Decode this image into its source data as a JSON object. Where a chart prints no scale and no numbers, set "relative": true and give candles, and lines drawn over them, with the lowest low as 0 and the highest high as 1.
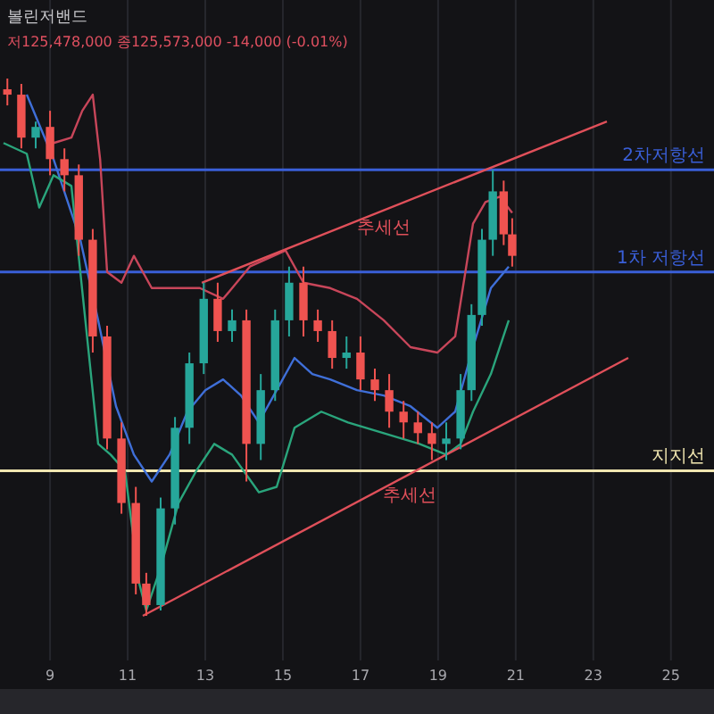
{
  "chart_data": {
    "type": "candlestick",
    "relative": true,
    "title": "볼린저밴드",
    "subtitle": "저125,478,000 종125,573,000 -14,000 (-0.01%)",
    "xlim": [
      7.71,
      26.11
    ],
    "xticks": [
      9,
      11,
      13,
      15,
      17,
      19,
      21,
      23,
      25
    ],
    "grid": "x",
    "tick_labels": "x",
    "x": [
      7.9,
      8.26,
      8.63,
      9.0,
      9.37,
      9.74,
      10.1,
      10.47,
      10.84,
      11.21,
      11.48,
      11.85,
      12.22,
      12.59,
      12.96,
      13.32,
      13.69,
      14.06,
      14.43,
      14.8,
      15.16,
      15.53,
      15.9,
      16.27,
      16.64,
      17.0,
      17.37,
      17.74,
      18.11,
      18.48,
      18.84,
      19.21,
      19.58,
      19.86,
      20.13,
      20.41,
      20.69,
      20.91
    ],
    "ohlc": [
      [
        0.98,
        1.0,
        0.95,
        0.97
      ],
      [
        0.97,
        0.99,
        0.87,
        0.89
      ],
      [
        0.89,
        0.92,
        0.87,
        0.91
      ],
      [
        0.91,
        0.94,
        0.82,
        0.85
      ],
      [
        0.85,
        0.87,
        0.79,
        0.82
      ],
      [
        0.82,
        0.84,
        0.67,
        0.7
      ],
      [
        0.7,
        0.72,
        0.49,
        0.52
      ],
      [
        0.52,
        0.54,
        0.31,
        0.33
      ],
      [
        0.33,
        0.36,
        0.19,
        0.21
      ],
      [
        0.21,
        0.24,
        0.04,
        0.06
      ],
      [
        0.06,
        0.08,
        0.0,
        0.02
      ],
      [
        0.02,
        0.22,
        0.01,
        0.2
      ],
      [
        0.2,
        0.37,
        0.17,
        0.35
      ],
      [
        0.35,
        0.49,
        0.32,
        0.47
      ],
      [
        0.47,
        0.62,
        0.45,
        0.59
      ],
      [
        0.59,
        0.62,
        0.51,
        0.53
      ],
      [
        0.53,
        0.57,
        0.51,
        0.55
      ],
      [
        0.55,
        0.57,
        0.25,
        0.32
      ],
      [
        0.32,
        0.45,
        0.29,
        0.42
      ],
      [
        0.42,
        0.57,
        0.4,
        0.55
      ],
      [
        0.55,
        0.65,
        0.52,
        0.62
      ],
      [
        0.62,
        0.65,
        0.52,
        0.55
      ],
      [
        0.55,
        0.57,
        0.51,
        0.53
      ],
      [
        0.53,
        0.55,
        0.46,
        0.48
      ],
      [
        0.48,
        0.52,
        0.46,
        0.49
      ],
      [
        0.49,
        0.52,
        0.42,
        0.44
      ],
      [
        0.44,
        0.46,
        0.4,
        0.42
      ],
      [
        0.42,
        0.45,
        0.35,
        0.38
      ],
      [
        0.38,
        0.4,
        0.33,
        0.36
      ],
      [
        0.36,
        0.38,
        0.32,
        0.34
      ],
      [
        0.34,
        0.36,
        0.29,
        0.32
      ],
      [
        0.32,
        0.36,
        0.29,
        0.33
      ],
      [
        0.33,
        0.45,
        0.31,
        0.42
      ],
      [
        0.42,
        0.58,
        0.4,
        0.56
      ],
      [
        0.56,
        0.72,
        0.54,
        0.7
      ],
      [
        0.7,
        0.83,
        0.67,
        0.79
      ],
      [
        0.79,
        0.81,
        0.69,
        0.71
      ],
      [
        0.71,
        0.74,
        0.65,
        0.67
      ]
    ],
    "colors": [
      "#ef5350",
      "#ef5350",
      "#26a69a",
      "#ef5350",
      "#ef5350",
      "#ef5350",
      "#ef5350",
      "#ef5350",
      "#ef5350",
      "#ef5350",
      "#ef5350",
      "#26a69a",
      "#26a69a",
      "#26a69a",
      "#26a69a",
      "#ef5350",
      "#26a69a",
      "#ef5350",
      "#26a69a",
      "#26a69a",
      "#26a69a",
      "#ef5350",
      "#ef5350",
      "#ef5350",
      "#26a69a",
      "#ef5350",
      "#ef5350",
      "#ef5350",
      "#ef5350",
      "#ef5350",
      "#ef5350",
      "#26a69a",
      "#26a69a",
      "#26a69a",
      "#26a69a",
      "#26a69a",
      "#ef5350",
      "#ef5350"
    ],
    "series": [
      {
        "type": "line",
        "color": "#c8465a",
        "x": [
          9.09,
          9.55,
          9.83,
          10.1,
          10.29,
          10.47,
          10.84,
          11.16,
          11.62,
          12.31,
          12.86,
          13.46,
          14.15,
          15.07,
          15.53,
          16.22,
          16.91,
          17.6,
          18.29,
          18.98,
          19.44,
          19.9,
          20.22,
          20.59,
          20.91
        ],
        "values": [
          0.88,
          0.89,
          0.94,
          0.97,
          0.85,
          0.64,
          0.62,
          0.67,
          0.61,
          0.61,
          0.61,
          0.59,
          0.65,
          0.68,
          0.62,
          0.61,
          0.59,
          0.55,
          0.5,
          0.49,
          0.52,
          0.73,
          0.77,
          0.78,
          0.75
        ]
      },
      {
        "type": "line",
        "color": "#3f6fd8",
        "x": [
          8.4,
          9.09,
          9.78,
          10.24,
          10.7,
          11.16,
          11.62,
          12.08,
          12.54,
          13.0,
          13.46,
          13.92,
          14.38,
          14.84,
          15.3,
          15.76,
          16.22,
          16.91,
          17.6,
          18.29,
          18.98,
          19.44,
          19.9,
          20.36,
          20.82
        ],
        "values": [
          0.97,
          0.85,
          0.7,
          0.55,
          0.39,
          0.3,
          0.25,
          0.3,
          0.38,
          0.42,
          0.44,
          0.41,
          0.36,
          0.42,
          0.48,
          0.45,
          0.44,
          0.42,
          0.41,
          0.39,
          0.35,
          0.38,
          0.5,
          0.61,
          0.65
        ]
      },
      {
        "type": "line",
        "color": "#2aa57c",
        "x": [
          7.8,
          8.4,
          8.72,
          9.09,
          9.55,
          10.24,
          10.56,
          10.93,
          11.3,
          11.48,
          11.85,
          12.31,
          12.77,
          13.23,
          13.69,
          14.38,
          14.84,
          15.3,
          15.99,
          16.68,
          17.6,
          18.52,
          19.21,
          19.58,
          19.9,
          20.36,
          20.82
        ],
        "values": [
          0.88,
          0.86,
          0.76,
          0.82,
          0.8,
          0.32,
          0.3,
          0.27,
          0.06,
          0.01,
          0.09,
          0.21,
          0.27,
          0.32,
          0.3,
          0.23,
          0.24,
          0.35,
          0.38,
          0.36,
          0.34,
          0.32,
          0.3,
          0.32,
          0.38,
          0.45,
          0.55
        ]
      },
      {
        "type": "line",
        "name": "추세선",
        "color": "#e0505a",
        "x": [
          12.91,
          23.35
        ],
        "values": [
          0.62,
          0.92
        ]
      },
      {
        "type": "line",
        "name": "추세선",
        "color": "#e0505a",
        "x": [
          11.39,
          23.9
        ],
        "values": [
          0.0,
          0.48
        ]
      }
    ],
    "ref_lines": [
      {
        "axis": "y",
        "value": 0.83,
        "label": "2차저항선",
        "color": "#3a5fd8"
      },
      {
        "axis": "y",
        "value": 0.64,
        "label": "1차 저항선",
        "color": "#3a5fd8"
      },
      {
        "axis": "y",
        "value": 0.27,
        "label": "지지선",
        "color": "#f0e6b0"
      }
    ]
  }
}
